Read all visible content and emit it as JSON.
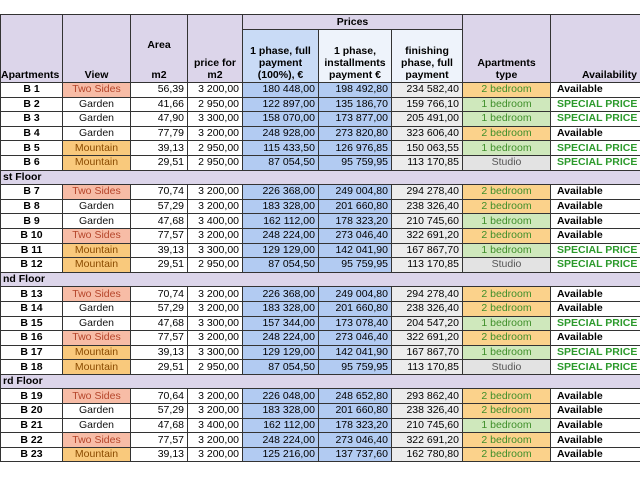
{
  "table": {
    "group_header": "Prices",
    "area_header": "Area",
    "columns": [
      "Apartments",
      "View",
      "m2",
      "price for m2",
      "1 phase, full payment (100%), €",
      "1 phase, installments payment €",
      "finishing phase, full payment",
      "Apartments type",
      "Availability"
    ],
    "cell_colors": {
      "Two Sides": {
        "bg": "#f7bca6",
        "fg": "#b5452a"
      },
      "Mountain": {
        "bg": "#f9c97c",
        "fg": "#8a4a00"
      },
      "Garden": {
        "bg": "#ffffff",
        "fg": "#111111"
      },
      "2 bedroom": {
        "bg": "#fbd28b",
        "fg": "#3f8f2a"
      },
      "1 bedroom": {
        "bg": "#cfe8bc",
        "fg": "#3f8f2a"
      },
      "Studio": {
        "bg": "#e3e3e3",
        "fg": "#555555"
      },
      "Available": {
        "bg": "#ffffff",
        "fg": "#000000"
      },
      "SPECIAL PRICE": {
        "bg": "#ffffff",
        "fg": "#2c9a2c"
      }
    },
    "rows": [
      [
        "B 1",
        "Two Sides",
        "56,39",
        "3 200,00",
        "180 448,00",
        "198 492,80",
        "234 582,40",
        "2 bedroom",
        "Available"
      ],
      [
        "B 2",
        "Garden",
        "41,66",
        "2 950,00",
        "122 897,00",
        "135 186,70",
        "159 766,10",
        "1 bedroom",
        "SPECIAL PRICE"
      ],
      [
        "B 3",
        "Garden",
        "47,90",
        "3 300,00",
        "158 070,00",
        "173 877,00",
        "205 491,00",
        "1 bedroom",
        "SPECIAL PRICE"
      ],
      [
        "B 4",
        "Garden",
        "77,79",
        "3 200,00",
        "248 928,00",
        "273 820,80",
        "323 606,40",
        "2 bedroom",
        "Available"
      ],
      [
        "B 5",
        "Mountain",
        "39,13",
        "2 950,00",
        "115 433,50",
        "126 976,85",
        "150 063,55",
        "1 bedroom",
        "SPECIAL PRICE"
      ],
      [
        "B 6",
        "Mountain",
        "29,51",
        "2 950,00",
        "87 054,50",
        "95 759,95",
        "113 170,85",
        "Studio",
        "SPECIAL PRICE"
      ],
      {
        "section": "st Floor"
      },
      [
        "B 7",
        "Two Sides",
        "70,74",
        "3 200,00",
        "226 368,00",
        "249 004,80",
        "294 278,40",
        "2 bedroom",
        "Available"
      ],
      [
        "B 8",
        "Garden",
        "57,29",
        "3 200,00",
        "183 328,00",
        "201 660,80",
        "238 326,40",
        "2 bedroom",
        "Available"
      ],
      [
        "B 9",
        "Garden",
        "47,68",
        "3 400,00",
        "162 112,00",
        "178 323,20",
        "210 745,60",
        "1 bedroom",
        "Available"
      ],
      [
        "B 10",
        "Two Sides",
        "77,57",
        "3 200,00",
        "248 224,00",
        "273 046,40",
        "322 691,20",
        "2 bedroom",
        "Available"
      ],
      [
        "B 11",
        "Mountain",
        "39,13",
        "3 300,00",
        "129 129,00",
        "142 041,90",
        "167 867,70",
        "1 bedroom",
        "SPECIAL PRICE"
      ],
      [
        "B 12",
        "Mountain",
        "29,51",
        "2 950,00",
        "87 054,50",
        "95 759,95",
        "113 170,85",
        "Studio",
        "SPECIAL PRICE"
      ],
      {
        "section": "nd Floor"
      },
      [
        "B 13",
        "Two Sides",
        "70,74",
        "3 200,00",
        "226 368,00",
        "249 004,80",
        "294 278,40",
        "2 bedroom",
        "Available"
      ],
      [
        "B 14",
        "Garden",
        "57,29",
        "3 200,00",
        "183 328,00",
        "201 660,80",
        "238 326,40",
        "2 bedroom",
        "Available"
      ],
      [
        "B 15",
        "Garden",
        "47,68",
        "3 300,00",
        "157 344,00",
        "173 078,40",
        "204 547,20",
        "1 bedroom",
        "SPECIAL PRICE"
      ],
      [
        "B 16",
        "Two Sides",
        "77,57",
        "3 200,00",
        "248 224,00",
        "273 046,40",
        "322 691,20",
        "2 bedroom",
        "Available"
      ],
      [
        "B 17",
        "Mountain",
        "39,13",
        "3 300,00",
        "129 129,00",
        "142 041,90",
        "167 867,70",
        "1 bedroom",
        "SPECIAL PRICE"
      ],
      [
        "B 18",
        "Mountain",
        "29,51",
        "2 950,00",
        "87 054,50",
        "95 759,95",
        "113 170,85",
        "Studio",
        "SPECIAL PRICE"
      ],
      {
        "section": "rd Floor"
      },
      [
        "B 19",
        "Two Sides",
        "70,64",
        "3 200,00",
        "226 048,00",
        "248 652,80",
        "293 862,40",
        "2 bedroom",
        "Available"
      ],
      [
        "B 20",
        "Garden",
        "57,29",
        "3 200,00",
        "183 328,00",
        "201 660,80",
        "238 326,40",
        "2 bedroom",
        "Available"
      ],
      [
        "B 21",
        "Garden",
        "47,68",
        "3 400,00",
        "162 112,00",
        "178 323,20",
        "210 745,60",
        "1 bedroom",
        "Available"
      ],
      [
        "B 22",
        "Two Sides",
        "77,57",
        "3 200,00",
        "248 224,00",
        "273 046,40",
        "322 691,20",
        "2 bedroom",
        "Available"
      ],
      [
        "B 23",
        "Mountain",
        "39,13",
        "3 200,00",
        "125 216,00",
        "137 737,60",
        "162 780,80",
        "2 bedroom",
        "Available"
      ]
    ]
  }
}
